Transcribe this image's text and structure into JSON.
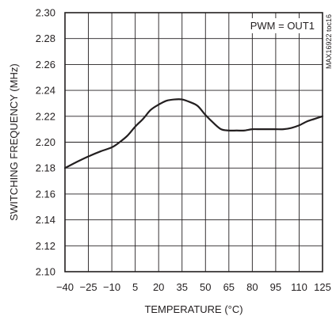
{
  "chart_data": {
    "type": "line",
    "title": "",
    "xlabel": "TEMPERATURE (°C)",
    "ylabel": "SWITCHING FREQUENCY (MHz)",
    "xlim": [
      -40,
      125
    ],
    "ylim": [
      2.1,
      2.3
    ],
    "xticks": [
      -40,
      -25,
      -10,
      5,
      20,
      35,
      50,
      65,
      80,
      95,
      110,
      125
    ],
    "yticks": [
      2.1,
      2.12,
      2.14,
      2.16,
      2.18,
      2.2,
      2.22,
      2.24,
      2.26,
      2.28,
      2.3
    ],
    "grid": true,
    "annotation": "PWM = OUT1",
    "figure_id": "MAX16922 toc16",
    "series": [
      {
        "x": [
          -40,
          -32,
          -25,
          -17,
          -10,
          -5,
          0,
          5,
          10,
          15,
          20,
          25,
          30,
          35,
          40,
          45,
          50,
          55,
          60,
          65,
          70,
          75,
          80,
          85,
          90,
          95,
          100,
          105,
          110,
          115,
          120,
          125
        ],
        "y": [
          2.18,
          2.185,
          2.189,
          2.193,
          2.196,
          2.2,
          2.205,
          2.212,
          2.218,
          2.225,
          2.229,
          2.232,
          2.233,
          2.233,
          2.231,
          2.228,
          2.221,
          2.215,
          2.21,
          2.209,
          2.209,
          2.209,
          2.21,
          2.21,
          2.21,
          2.21,
          2.21,
          2.211,
          2.213,
          2.216,
          2.218,
          2.22
        ]
      }
    ]
  }
}
